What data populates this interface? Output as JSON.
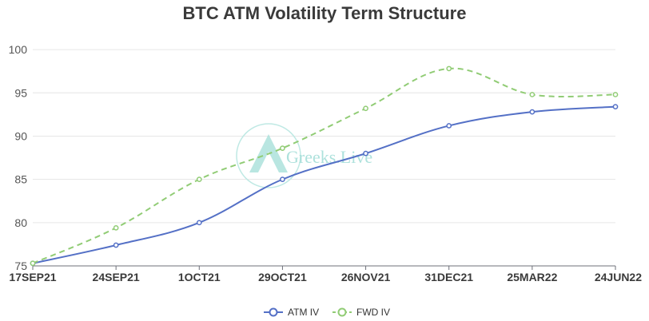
{
  "chart_data": {
    "type": "line",
    "title": "BTC ATM Volatility Term Structure",
    "categories": [
      "17SEP21",
      "24SEP21",
      "1OCT21",
      "29OCT21",
      "26NOV21",
      "31DEC21",
      "25MAR22",
      "24JUN22"
    ],
    "ylim": [
      75,
      102.5
    ],
    "yticks": [
      75,
      80,
      85,
      90,
      95,
      100
    ],
    "series": [
      {
        "name": "ATM IV",
        "color": "#5470c6",
        "dashed": false,
        "values": [
          75.3,
          77.4,
          80.0,
          85.0,
          88.0,
          91.2,
          92.8,
          93.4
        ]
      },
      {
        "name": "FWD IV",
        "color": "#91cc75",
        "dashed": true,
        "values": [
          75.3,
          79.4,
          85.0,
          88.6,
          93.2,
          97.8,
          94.8,
          94.8
        ]
      }
    ],
    "grid": true,
    "legend_position": "bottom-center",
    "watermark": "Greeks.Live"
  }
}
